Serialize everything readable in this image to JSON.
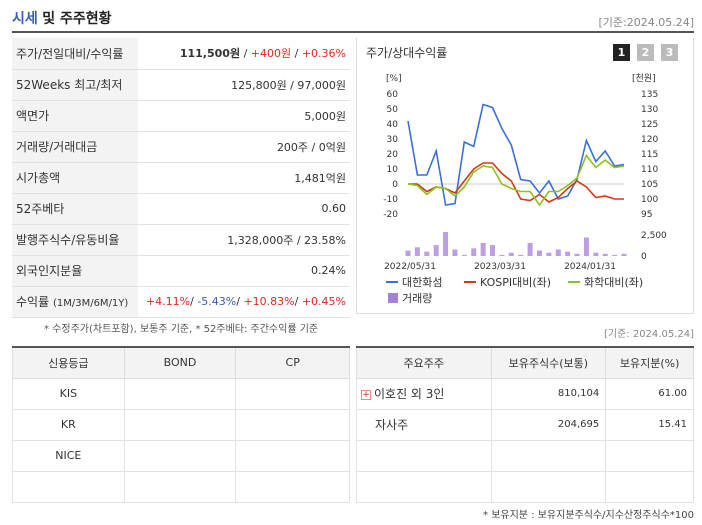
{
  "header": {
    "title_a": "시세",
    "title_b": "및 주주현황",
    "date": "[기준:2024.05.24]"
  },
  "stats": [
    {
      "label": "주가/전일대비/수익률"
    },
    {
      "label": "52Weeks 최고/최저",
      "value": "125,800원 / 97,000원"
    },
    {
      "label": "액면가",
      "value": "5,000원"
    },
    {
      "label": "거래량/거래대금",
      "value": "200주 / 0억원"
    },
    {
      "label": "시가총액",
      "value": "1,481억원"
    },
    {
      "label": "52주베타",
      "value": "0.60"
    },
    {
      "label": "발행주식수/유동비율",
      "value": "1,328,000주 / 23.58%"
    },
    {
      "label": "외국인지분율",
      "value": "0.24%"
    },
    {
      "label": "수익률",
      "label_small": "(1M/3M/6M/1Y)"
    }
  ],
  "price": {
    "price": "111,500원",
    "sep1": " / ",
    "change": "+400원",
    "sep2": " / ",
    "rate": "+0.36%"
  },
  "returns": {
    "r1": "+4.11%",
    "s1": "/ ",
    "r2": "-5.43%",
    "s2": "/ ",
    "r3": "+10.83%",
    "s3": "/ ",
    "r4": "+0.45%"
  },
  "footnote1": "* 수정주가(차트포함), 보통주 기준, * 52주베타: 주간수익률 기준",
  "chart_title": "주가/상대수익률",
  "chart_pages": [
    "1",
    "2",
    "3"
  ],
  "date2": "[기준: 2024.05.24]",
  "credit": {
    "headers": [
      "신용등급",
      "BOND",
      "CP"
    ],
    "rows": [
      "KIS",
      "KR",
      "NICE",
      ""
    ]
  },
  "holders": {
    "headers": [
      "주요주주",
      "보유주식수(보통)",
      "보유지분(%)"
    ],
    "rows": [
      {
        "name": "이호진 외 3인",
        "shares": "810,104",
        "pct": "61.00"
      },
      {
        "name": "자사주",
        "shares": "204,695",
        "pct": "15.41"
      }
    ]
  },
  "footnote2": "* 보유지분 : 보유지분주식수/지수산정주식수*100",
  "chart_data": {
    "type": "line",
    "left_unit": "[%]",
    "right_unit": "[천원]",
    "left_ticks": [
      "60",
      "50",
      "40",
      "30",
      "20",
      "10",
      "0",
      "-10",
      "-20"
    ],
    "right_ticks": [
      "135",
      "130",
      "125",
      "120",
      "115",
      "110",
      "105",
      "100",
      "95"
    ],
    "volume_ticks": [
      "2,500",
      "0"
    ],
    "x_labels": [
      "2022/05/31",
      "2023/03/31",
      "2024/01/31"
    ],
    "ylim_left": [
      -20,
      60
    ],
    "ylim_right": [
      95,
      135
    ],
    "legend_placement": "bottom",
    "series": [
      {
        "name": "대한화섬",
        "color": "#3a6fd8",
        "values": [
          42,
          6,
          6,
          22,
          -14,
          -13,
          28,
          25,
          53,
          51,
          37,
          26,
          3,
          2,
          -6,
          2,
          -10,
          -8,
          3,
          29,
          15,
          22,
          12,
          13
        ]
      },
      {
        "name": "KOSPI대비(좌)",
        "color": "#d03a16",
        "values": [
          0,
          0,
          -5,
          -2,
          -3,
          -6,
          2,
          10,
          14,
          14,
          7,
          2,
          -10,
          -11,
          -7,
          -12,
          -9,
          -3,
          2,
          -2,
          -9,
          -8,
          -10,
          -10
        ]
      },
      {
        "name": "화학대비(좌)",
        "color": "#8cc21c",
        "values": [
          0,
          -1,
          -7,
          -2,
          -3,
          -8,
          -2,
          8,
          12,
          11,
          0,
          -3,
          -5,
          -5,
          -14,
          -5,
          -5,
          -1,
          4,
          19,
          11,
          16,
          11,
          12
        ]
      }
    ],
    "volume": {
      "name": "거래량",
      "color": "#a57fd8",
      "values": [
        5,
        8,
        4,
        10,
        22,
        6,
        1,
        7,
        12,
        10,
        1,
        3,
        1,
        12,
        5,
        3,
        6,
        4,
        2,
        17,
        3,
        2,
        1,
        2
      ]
    }
  }
}
